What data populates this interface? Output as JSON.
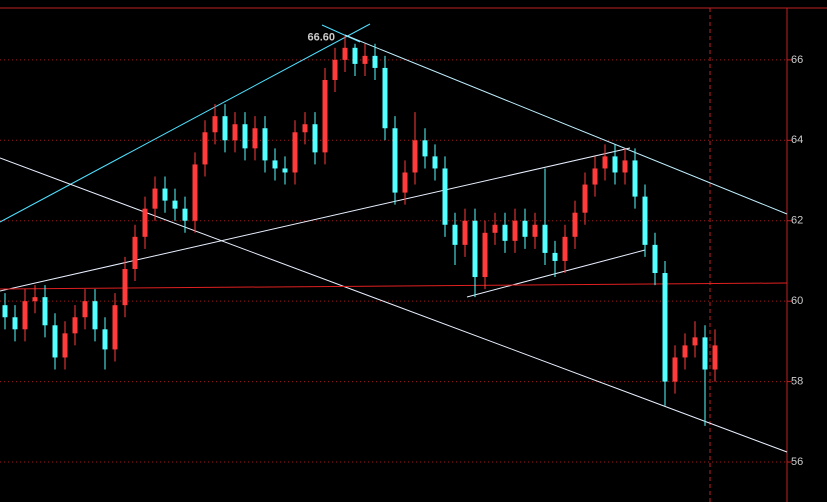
{
  "chart_data": {
    "type": "candlestick",
    "up_color": "#ff3b3b",
    "down_color": "#54ffff",
    "open": [
      59.9,
      59.6,
      59.3,
      60.0,
      60.1,
      59.4,
      58.6,
      59.2,
      59.6,
      60.0,
      59.3,
      58.8,
      59.9,
      60.8,
      61.6,
      62.3,
      62.8,
      62.5,
      62.3,
      62.0,
      63.4,
      64.2,
      64.6,
      64.0,
      64.4,
      63.8,
      64.3,
      63.5,
      63.3,
      63.2,
      64.2,
      64.4,
      63.7,
      65.5,
      66.0,
      66.3,
      65.9,
      66.1,
      65.8,
      64.3,
      62.7,
      63.2,
      64.0,
      63.6,
      63.3,
      61.9,
      61.4,
      62.0,
      60.6,
      61.7,
      61.9,
      61.5,
      62.0,
      61.6,
      61.9,
      61.2,
      61.0,
      61.6,
      62.2,
      62.9,
      63.3,
      63.6,
      63.2,
      63.5,
      62.6,
      61.4,
      60.7,
      58.0,
      58.6,
      58.9,
      59.1,
      58.3
    ],
    "high": [
      60.2,
      59.9,
      60.3,
      60.4,
      60.4,
      59.7,
      59.5,
      59.9,
      60.3,
      60.3,
      59.6,
      60.2,
      61.1,
      61.9,
      62.6,
      63.1,
      63.1,
      62.8,
      62.6,
      63.7,
      64.5,
      64.9,
      64.9,
      64.7,
      64.7,
      64.6,
      64.6,
      63.8,
      63.6,
      64.5,
      64.7,
      64.7,
      65.8,
      66.3,
      66.6,
      66.4,
      66.4,
      66.4,
      66.1,
      64.6,
      63.5,
      64.7,
      64.3,
      63.9,
      63.6,
      62.2,
      62.3,
      62.3,
      62.0,
      62.2,
      62.2,
      62.3,
      62.3,
      62.2,
      63.3,
      61.5,
      61.9,
      62.5,
      63.2,
      63.6,
      63.9,
      63.9,
      63.8,
      63.8,
      62.9,
      61.7,
      61.0,
      58.9,
      59.2,
      59.5,
      59.4,
      59.3
    ],
    "low": [
      59.3,
      59.0,
      59.0,
      59.7,
      59.1,
      58.3,
      58.3,
      58.9,
      59.3,
      59.0,
      58.3,
      58.5,
      59.6,
      60.5,
      61.3,
      62.0,
      62.2,
      62.0,
      61.7,
      61.7,
      63.1,
      63.9,
      63.7,
      63.7,
      63.5,
      63.5,
      63.2,
      63.0,
      62.9,
      62.9,
      63.9,
      63.4,
      63.4,
      65.2,
      65.7,
      65.6,
      65.6,
      65.5,
      64.0,
      62.4,
      62.4,
      62.9,
      63.3,
      63.0,
      61.6,
      60.9,
      61.1,
      60.1,
      60.3,
      61.4,
      61.2,
      61.2,
      61.3,
      61.3,
      60.9,
      60.6,
      60.7,
      61.3,
      61.9,
      62.6,
      63.0,
      62.9,
      62.9,
      62.3,
      61.1,
      60.4,
      57.4,
      57.7,
      58.3,
      58.6,
      56.9,
      58.0
    ],
    "close": [
      59.6,
      59.3,
      60.0,
      60.1,
      59.4,
      58.6,
      59.2,
      59.6,
      60.0,
      59.3,
      58.8,
      59.9,
      60.8,
      61.6,
      62.3,
      62.8,
      62.5,
      62.3,
      62.0,
      63.4,
      64.2,
      64.6,
      64.0,
      64.4,
      63.8,
      64.3,
      63.5,
      63.3,
      63.2,
      64.2,
      64.4,
      63.7,
      65.5,
      66.0,
      66.3,
      65.9,
      66.1,
      65.8,
      64.3,
      62.7,
      63.2,
      64.0,
      63.6,
      63.3,
      61.9,
      61.4,
      62.0,
      60.6,
      61.7,
      61.9,
      61.5,
      62.0,
      61.6,
      61.9,
      61.2,
      61.0,
      61.6,
      62.2,
      62.9,
      63.3,
      63.6,
      63.2,
      63.5,
      62.6,
      61.4,
      60.7,
      58.0,
      58.6,
      58.9,
      59.1,
      58.3,
      58.9
    ],
    "peak_label": {
      "value": 66.6,
      "label": "66.60"
    },
    "ylim": [
      55.18,
      67.29
    ],
    "yticks": [
      56,
      58,
      60,
      62,
      64,
      66
    ],
    "grid": true
  }
}
